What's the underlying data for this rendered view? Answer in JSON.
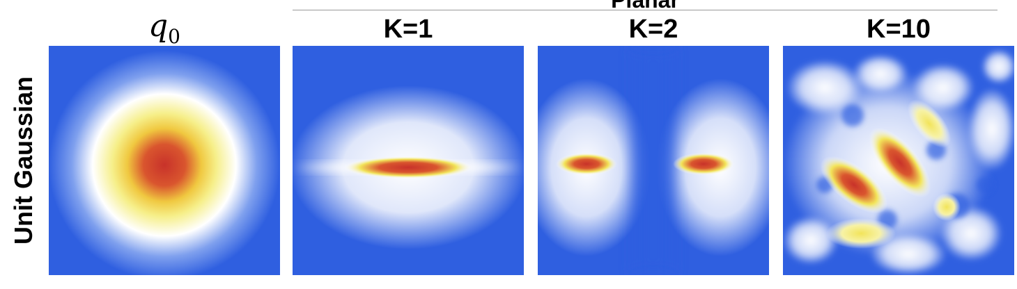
{
  "header": {
    "group_title": "Planar",
    "q0_symbol": "q",
    "q0_subscript": "0",
    "columns": [
      "K=1",
      "K=2",
      "K=10"
    ]
  },
  "rows": [
    {
      "label": "Unit Gaussian"
    }
  ],
  "panels": [
    {
      "name": "q0",
      "caption": ""
    },
    {
      "name": "K=1",
      "caption": ""
    },
    {
      "name": "K=2",
      "caption": ""
    },
    {
      "name": "K=10",
      "caption": ""
    }
  ],
  "colors": {
    "low": "#2f5fe0",
    "mid": "#ffffff",
    "high_mid": "#f2e45a",
    "high": "#c8322a"
  }
}
